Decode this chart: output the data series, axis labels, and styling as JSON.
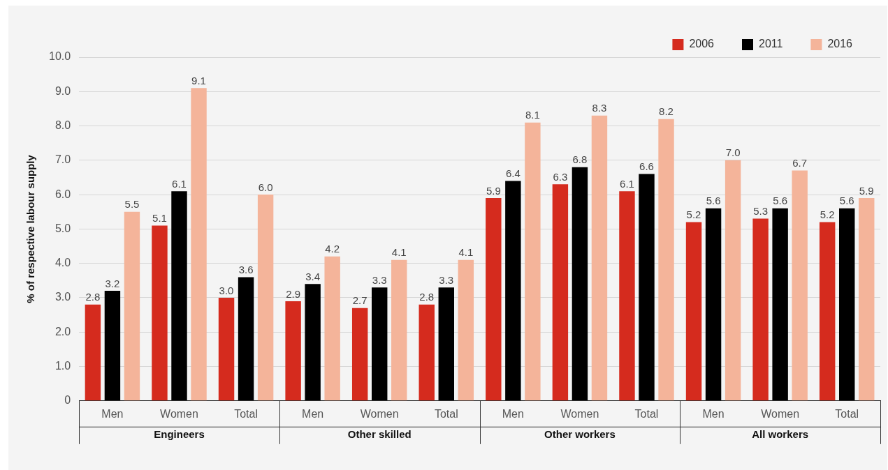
{
  "chart_data": {
    "type": "bar",
    "ylabel": "% of respective labour supply",
    "categories": [
      "Men",
      "Women",
      "Total",
      "Men",
      "Women",
      "Total",
      "Men",
      "Women",
      "Total",
      "Men",
      "Women",
      "Total"
    ],
    "annotations": [
      "Engineers",
      "Other skilled",
      "Other workers",
      "All workers"
    ],
    "series": [
      {
        "name": "2006",
        "color": "#d52b1e",
        "values": [
          2.8,
          5.1,
          3.0,
          2.9,
          2.7,
          2.8,
          5.9,
          6.3,
          6.1,
          5.2,
          5.3,
          5.2
        ],
        "value_labels": [
          "2.8",
          "5.1",
          "3.0",
          "2.9",
          "2.7",
          "2.8",
          "5.9",
          "6.3",
          "6.1",
          "5.2",
          "5.3",
          "5.2"
        ]
      },
      {
        "name": "2011",
        "color": "#000000",
        "values": [
          3.2,
          6.1,
          3.6,
          3.4,
          3.3,
          3.3,
          6.4,
          6.8,
          6.6,
          5.6,
          5.6,
          5.6
        ],
        "value_labels": [
          "3.2",
          "6.1",
          "3.6",
          "3.4",
          "3.3",
          "3.3",
          "6.4",
          "6.8",
          "6.6",
          "5.6",
          "5.6",
          "5.6"
        ]
      },
      {
        "name": "2016",
        "color": "#f4b49a",
        "values": [
          5.5,
          9.1,
          6.0,
          4.2,
          4.1,
          4.1,
          8.1,
          8.3,
          8.2,
          7.0,
          6.7,
          5.9
        ],
        "value_labels": [
          "5.5",
          "9.1",
          "6.0",
          "4.2",
          "4.1",
          "4.1",
          "8.1",
          "8.3",
          "8.2",
          "7.0",
          "6.7",
          "5.9"
        ]
      }
    ],
    "ylim": [
      0,
      10
    ],
    "yticks": [
      0,
      {
        "value": 1,
        "label": "1.0"
      },
      {
        "value": 2,
        "label": "2.0"
      },
      {
        "value": 3,
        "label": "3.0"
      },
      {
        "value": 4,
        "label": "4.0"
      },
      {
        "value": 5,
        "label": "5.0"
      },
      {
        "value": 6,
        "label": "6.0"
      },
      {
        "value": 7,
        "label": "7.0"
      },
      {
        "value": 8,
        "label": "8.0"
      },
      {
        "value": 9,
        "label": "9.0"
      },
      {
        "value": 10,
        "label": "10.0"
      }
    ],
    "grid": "y",
    "legend": "top right"
  }
}
